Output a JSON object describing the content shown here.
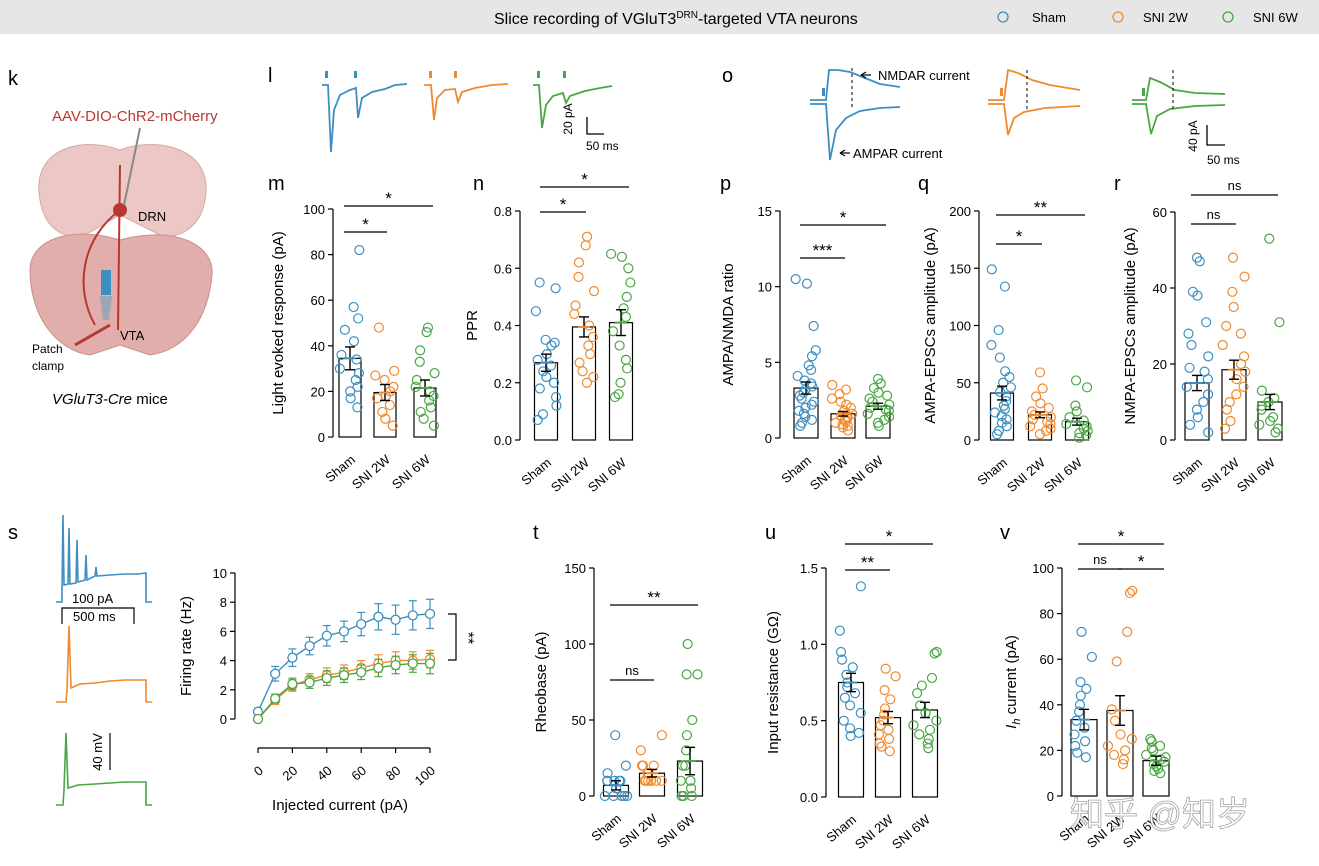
{
  "header": {
    "title_main": "Slice recording of VGluT3",
    "title_sup": "DRN",
    "title_end": "-targeted VTA neurons",
    "legend": [
      {
        "label": "Sham",
        "color": "#3d8fc1"
      },
      {
        "label": "SNI 2W",
        "color": "#ef8a2e"
      },
      {
        "label": "SNI 6W",
        "color": "#4aa645"
      }
    ]
  },
  "colors": {
    "sham": "#3d8fc1",
    "sni2w": "#ef8a2e",
    "sni6w": "#4aa645",
    "brain": "#e8b6b3",
    "virus": "#b8382f"
  },
  "panel_k": {
    "letter": "k",
    "virus": "AAV-DIO-ChR2-mCherry",
    "drn": "DRN",
    "vta": "VTA",
    "patch1": "Patch",
    "patch2": "clamp",
    "mice_italic": "VGluT3-Cre",
    "mice_rest": " mice"
  },
  "panel_l": {
    "letter": "l",
    "scale_y": "20 pA",
    "scale_x": "50 ms"
  },
  "panel_o": {
    "letter": "o",
    "nmda_label": "NMDAR current",
    "ampa_label": "AMPAR current",
    "scale_y": "40 pA",
    "scale_x": "50 ms"
  },
  "panel_s": {
    "letter": "s",
    "scale_current": "100 pA",
    "scale_time": "500 ms",
    "scale_mv": "40 mV"
  },
  "watermark": "知乎 @知岁",
  "chart_data": [
    {
      "id": "m",
      "type": "bar",
      "letter": "m",
      "categories": [
        "Sham",
        "SNI 2W",
        "SNI 6W"
      ],
      "values": [
        34.5,
        19.5,
        21.5
      ],
      "sem": [
        5,
        3.5,
        3.5
      ],
      "ylabel": "Light evoked response (pA)",
      "ylim": [
        0,
        100
      ],
      "yticks": [
        "0",
        "20",
        "40",
        "60",
        "80",
        "100"
      ],
      "points": [
        [
          82,
          57,
          52,
          47,
          42,
          36,
          34,
          30,
          28,
          25,
          22,
          20,
          17,
          13
        ],
        [
          48,
          29,
          27,
          25,
          22,
          20,
          18,
          17,
          14,
          11,
          8,
          5
        ],
        [
          48,
          46,
          38,
          33,
          28,
          25,
          22,
          20,
          18,
          16,
          13,
          11,
          8,
          5
        ]
      ],
      "significance": [
        {
          "from": 0,
          "to": 1,
          "label": "*"
        },
        {
          "from": 0,
          "to": 2,
          "label": "*"
        }
      ]
    },
    {
      "id": "n",
      "type": "bar",
      "letter": "n",
      "categories": [
        "Sham",
        "SNI 2W",
        "SNI 6W"
      ],
      "values": [
        0.27,
        0.395,
        0.41
      ],
      "sem": [
        0.03,
        0.035,
        0.045
      ],
      "ylabel": "PPR",
      "ylim": [
        0,
        0.8
      ],
      "yticks": [
        "0.0",
        "0.2",
        "0.4",
        "0.6",
        "0.8"
      ],
      "points": [
        [
          0.55,
          0.53,
          0.45,
          0.35,
          0.34,
          0.33,
          0.3,
          0.28,
          0.26,
          0.24,
          0.22,
          0.2,
          0.18,
          0.15,
          0.12,
          0.09,
          0.07
        ],
        [
          0.71,
          0.68,
          0.62,
          0.57,
          0.52,
          0.47,
          0.44,
          0.4,
          0.36,
          0.33,
          0.3,
          0.27,
          0.24,
          0.22,
          0.2
        ],
        [
          0.65,
          0.64,
          0.6,
          0.55,
          0.5,
          0.46,
          0.43,
          0.38,
          0.33,
          0.28,
          0.25,
          0.2,
          0.16,
          0.15
        ]
      ],
      "significance": [
        {
          "from": 0,
          "to": 1,
          "label": "*"
        },
        {
          "from": 0,
          "to": 2,
          "label": "*"
        }
      ]
    },
    {
      "id": "p",
      "type": "bar",
      "letter": "p",
      "categories": [
        "Sham",
        "SNI 2W",
        "SNI 6W"
      ],
      "values": [
        3.3,
        1.6,
        2.1
      ],
      "sem": [
        0.4,
        0.15,
        0.2
      ],
      "ylabel": "AMPA/NMDA ratio",
      "ylim": [
        0,
        15
      ],
      "yticks": [
        "0",
        "5",
        "10",
        "15"
      ],
      "points": [
        [
          10.5,
          10.2,
          7.4,
          5.8,
          5.4,
          4.8,
          4.5,
          4.1,
          3.8,
          3.6,
          3.4,
          3.2,
          3,
          2.8,
          2.6,
          2.4,
          2.2,
          2,
          1.8,
          1.6,
          1.4,
          1.2,
          1,
          0.8
        ],
        [
          3.5,
          3.2,
          2.9,
          2.6,
          2.4,
          2.2,
          2,
          1.8,
          1.6,
          1.5,
          1.4,
          1.3,
          1.2,
          1.1,
          1,
          0.9,
          0.8,
          0.7,
          0.5
        ],
        [
          3.9,
          3.6,
          3.3,
          3,
          2.8,
          2.6,
          2.4,
          2.2,
          2,
          1.9,
          1.8,
          1.6,
          1.4,
          1.2,
          1,
          0.8
        ]
      ],
      "significance": [
        {
          "from": 0,
          "to": 1,
          "label": "***"
        },
        {
          "from": 0,
          "to": 2,
          "label": "*"
        }
      ]
    },
    {
      "id": "q",
      "type": "bar",
      "letter": "q",
      "categories": [
        "Sham",
        "SNI 2W",
        "SNI 6W"
      ],
      "values": [
        41,
        22,
        16
      ],
      "sem": [
        6,
        2.5,
        3
      ],
      "ylabel": "AMPA-EPSCs amplitude (pA)",
      "ylim": [
        0,
        200
      ],
      "yticks": [
        "0",
        "50",
        "100",
        "150",
        "200"
      ],
      "points": [
        [
          149,
          134,
          96,
          83,
          72,
          60,
          55,
          50,
          46,
          42,
          38,
          34,
          30,
          27,
          24,
          21,
          18,
          15,
          12,
          8,
          5
        ],
        [
          59,
          45,
          38,
          32,
          28,
          25,
          22,
          20,
          18,
          16,
          14,
          12,
          10,
          8,
          5
        ],
        [
          52,
          46,
          30,
          25,
          20,
          17,
          14,
          12,
          10,
          8,
          6,
          4,
          2
        ]
      ],
      "significance": [
        {
          "from": 0,
          "to": 1,
          "label": "*"
        },
        {
          "from": 0,
          "to": 2,
          "label": "**"
        }
      ]
    },
    {
      "id": "r",
      "type": "bar",
      "letter": "r",
      "categories": [
        "Sham",
        "SNI 2W",
        "SNI 6W"
      ],
      "values": [
        15,
        18.5,
        10
      ],
      "sem": [
        2,
        2.5,
        2
      ],
      "ylabel": "NMPA-EPSCs amplitude (pA)",
      "ylim": [
        0,
        60
      ],
      "yticks": [
        "0",
        "20",
        "40",
        "60"
      ],
      "points": [
        [
          48,
          47,
          39,
          38,
          31,
          28,
          25,
          22,
          19,
          18,
          16,
          14,
          12,
          10,
          8,
          6,
          4,
          2
        ],
        [
          48,
          43,
          39,
          35,
          30,
          28,
          25,
          22,
          20,
          18,
          16,
          14,
          12,
          10,
          8,
          5,
          3
        ],
        [
          53,
          31,
          13,
          11,
          10,
          9,
          8,
          6,
          5,
          4,
          3,
          2
        ]
      ],
      "significance": [
        {
          "from": 0,
          "to": 1,
          "label": "ns"
        },
        {
          "from": 0,
          "to": 2,
          "label": "ns"
        }
      ]
    },
    {
      "id": "s",
      "type": "line",
      "letter": "s",
      "x": [
        0,
        10,
        20,
        30,
        40,
        50,
        60,
        70,
        80,
        90,
        100
      ],
      "series": [
        {
          "name": "Sham",
          "values": [
            0.5,
            3.1,
            4.2,
            5.0,
            5.7,
            6.0,
            6.5,
            7.0,
            6.8,
            7.1,
            7.2
          ],
          "sem": [
            0.2,
            0.5,
            0.6,
            0.6,
            0.7,
            0.7,
            0.8,
            0.9,
            1.0,
            1.0,
            1.0
          ]
        },
        {
          "name": "SNI 2W",
          "values": [
            0.0,
            1.3,
            2.3,
            2.7,
            3.0,
            3.2,
            3.5,
            3.8,
            4.0,
            4.0,
            4.1
          ],
          "sem": [
            0.1,
            0.3,
            0.4,
            0.4,
            0.5,
            0.5,
            0.5,
            0.6,
            0.6,
            0.6,
            0.6
          ]
        },
        {
          "name": "SNI 6W",
          "values": [
            0.0,
            1.4,
            2.4,
            2.5,
            2.8,
            3.0,
            3.2,
            3.5,
            3.7,
            3.8,
            3.8
          ],
          "sem": [
            0.1,
            0.3,
            0.4,
            0.4,
            0.5,
            0.5,
            0.5,
            0.6,
            0.6,
            0.6,
            0.7
          ]
        }
      ],
      "xlabel": "Injected current (pA)",
      "ylabel": "Firing rate (Hz)",
      "xlim": [
        0,
        100
      ],
      "ylim": [
        0,
        10
      ],
      "xticks": [
        "0",
        "20",
        "40",
        "60",
        "80",
        "100"
      ],
      "yticks": [
        "0",
        "2",
        "4",
        "6",
        "8",
        "10"
      ],
      "significance_label": "**"
    },
    {
      "id": "t",
      "type": "bar",
      "letter": "t",
      "categories": [
        "Sham",
        "SNI 2W",
        "SNI 6W"
      ],
      "values": [
        7,
        15,
        23
      ],
      "sem": [
        3,
        2.5,
        9
      ],
      "ylabel": "Rheobase (pA)",
      "ylim": [
        0,
        150
      ],
      "yticks": [
        "0",
        "50",
        "100",
        "150"
      ],
      "points": [
        [
          40,
          20,
          15,
          10,
          10,
          10,
          10,
          10,
          5,
          0,
          0,
          0,
          0,
          0
        ],
        [
          40,
          30,
          20,
          20,
          20,
          15,
          15,
          10,
          10,
          10,
          10,
          10,
          10,
          10
        ],
        [
          100,
          80,
          80,
          50,
          40,
          30,
          20,
          20,
          10,
          10,
          5,
          0,
          0,
          0
        ]
      ],
      "significance": [
        {
          "from": 0,
          "to": 1,
          "label": "ns"
        },
        {
          "from": 0,
          "to": 2,
          "label": "**"
        }
      ]
    },
    {
      "id": "u",
      "type": "bar",
      "letter": "u",
      "categories": [
        "Sham",
        "SNI 2W",
        "SNI 6W"
      ],
      "values": [
        0.75,
        0.52,
        0.57
      ],
      "sem": [
        0.06,
        0.04,
        0.05
      ],
      "ylabel": "Input resistance (GΩ)",
      "ylim": [
        0,
        1.5
      ],
      "yticks": [
        "0.0",
        "0.5",
        "1.0",
        "1.5"
      ],
      "points": [
        [
          1.38,
          1.09,
          0.95,
          0.9,
          0.85,
          0.8,
          0.75,
          0.72,
          0.68,
          0.65,
          0.6,
          0.55,
          0.5,
          0.45,
          0.42,
          0.4
        ],
        [
          0.84,
          0.79,
          0.7,
          0.64,
          0.58,
          0.54,
          0.5,
          0.47,
          0.44,
          0.41,
          0.38,
          0.35,
          0.33,
          0.3
        ],
        [
          0.95,
          0.94,
          0.78,
          0.73,
          0.68,
          0.6,
          0.55,
          0.5,
          0.47,
          0.44,
          0.41,
          0.38,
          0.35,
          0.32
        ]
      ],
      "significance": [
        {
          "from": 0,
          "to": 1,
          "label": "**"
        },
        {
          "from": 0,
          "to": 2,
          "label": "*"
        }
      ]
    },
    {
      "id": "v",
      "type": "bar",
      "letter": "v",
      "categories": [
        "Sham",
        "SNI 2W",
        "SNI 6W"
      ],
      "values": [
        33.5,
        37.5,
        15.5
      ],
      "sem": [
        4.5,
        6.5,
        2
      ],
      "ylabel_italic": "I",
      "ylabel_sub": "h",
      "ylabel_rest": " current (pA)",
      "ylim": [
        0,
        100
      ],
      "yticks": [
        "0",
        "20",
        "40",
        "60",
        "80",
        "100"
      ],
      "points": [
        [
          72,
          61,
          50,
          47,
          44,
          40,
          37,
          33,
          30,
          27,
          24,
          22,
          19,
          17
        ],
        [
          90,
          89,
          72,
          59,
          38,
          33,
          27,
          25,
          22,
          20,
          18,
          16,
          14
        ],
        [
          25,
          24,
          22,
          21,
          20,
          18,
          17,
          16,
          15,
          14,
          13,
          12,
          11,
          10
        ]
      ],
      "significance": [
        {
          "from": 0,
          "to": 1,
          "label": "ns"
        },
        {
          "from": 1,
          "to": 2,
          "label": "*"
        },
        {
          "from": 0,
          "to": 2,
          "label": "*"
        }
      ]
    }
  ]
}
